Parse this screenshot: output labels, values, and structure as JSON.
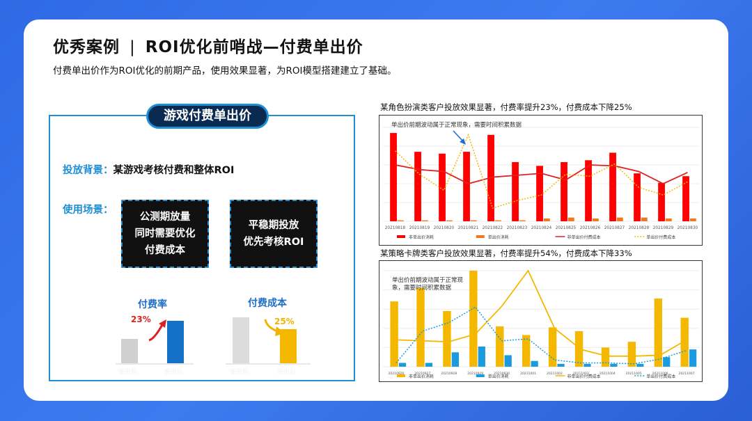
{
  "header": {
    "title_left": "优秀案例",
    "title_sep": "|",
    "title_right": "ROI优化前哨战—付费单出价",
    "subtitle": "付费单出价作为ROI优化的前期产品，使用效果显著，为ROI模型搭建建立了基础。"
  },
  "left_panel": {
    "tag": "游戏付费单出价",
    "background_key": "投放背景：",
    "background_value": "某游戏考核付费和整体ROI",
    "scene_key": "使用场景：",
    "scene_a": [
      "公测期放量",
      "同时需要优化",
      "付费成本"
    ],
    "scene_b": [
      "平稳期投放",
      "优先考核ROI"
    ],
    "mini_charts": [
      {
        "title": "付费率",
        "pct": "23%",
        "pct_color": "#e02020",
        "before": 1.0,
        "after": 1.23,
        "before_color": "#d0d0d0",
        "after_color": "#1570c8",
        "labels": [
          "使用前",
          "使用后"
        ]
      },
      {
        "title": "付费成本",
        "pct": "25%",
        "pct_color": "#f0b400",
        "before": 1.0,
        "after": 0.75,
        "before_color": "#dcdcdc",
        "after_color": "#f5b800",
        "labels": [
          "使用前",
          "使用后"
        ]
      }
    ]
  },
  "chart_captions": {
    "top": "某角色扮演类客户投放效果显著，付费率提升23%，付费成本下降25%",
    "bottom": "某策略卡牌类客户投放效果显著，付费率提升54%，付费成本下降33%"
  },
  "chart_data": [
    {
      "type": "bar",
      "annotation": "单出价前期波动属于正常现象，需要时间积累数据",
      "categories": [
        "20210818",
        "20210819",
        "20210820",
        "20210821",
        "20210822",
        "20210823",
        "20210824",
        "20210825",
        "20210826",
        "20210827",
        "20210828",
        "20210829",
        "20210830"
      ],
      "ylim": [
        0,
        100
      ],
      "series": [
        {
          "name": "非单出价消耗",
          "kind": "bar",
          "color": "#ff0000",
          "values": [
            94,
            74,
            72,
            74,
            92,
            63,
            59,
            63,
            65,
            73,
            51,
            41,
            48
          ]
        },
        {
          "name": "单出价消耗",
          "kind": "bar",
          "color": "#f07820",
          "values": [
            1,
            1,
            1,
            1,
            1,
            1,
            3,
            4,
            3,
            4,
            4,
            3,
            3
          ]
        },
        {
          "name": "非单出价付费成本",
          "kind": "line",
          "color": "#e02020",
          "values": [
            60,
            55,
            53,
            40,
            47,
            49,
            51,
            44,
            60,
            59,
            53,
            40,
            52
          ]
        },
        {
          "name": "单出价付费成本",
          "kind": "dotted",
          "color": "#f5b800",
          "values": [
            75,
            50,
            33,
            92,
            14,
            22,
            28,
            50,
            48,
            61,
            36,
            28,
            42
          ]
        }
      ]
    },
    {
      "type": "bar",
      "annotation": "单出价前期波动属于正常现象，需要时间积累数据",
      "categories": [
        "20210926",
        "20210927",
        "20210928",
        "20210929",
        "20210930",
        "20211001",
        "20211002",
        "20211003",
        "20211004",
        "20211005",
        "20211006",
        "20211007"
      ],
      "ylim": [
        0,
        100
      ],
      "series": [
        {
          "name": "非单出价消耗",
          "kind": "bar",
          "color": "#f5b800",
          "values": [
            68,
            82,
            58,
            100,
            42,
            33,
            41,
            37,
            20,
            26,
            71,
            51
          ]
        },
        {
          "name": "单出价消耗",
          "kind": "bar",
          "color": "#1a9be0",
          "values": [
            4,
            4,
            15,
            21,
            12,
            6,
            3,
            3,
            3,
            3,
            10,
            18
          ]
        },
        {
          "name": "非单出价付费成本",
          "kind": "line",
          "color": "#f5b800",
          "values": [
            28,
            27,
            26,
            34,
            63,
            100,
            40,
            18,
            11,
            11,
            12,
            28
          ]
        },
        {
          "name": "单出价付费成本",
          "kind": "dotted",
          "color": "#1a9be0",
          "values": [
            4,
            37,
            46,
            62,
            27,
            29,
            7,
            4,
            4,
            3,
            8,
            17
          ]
        }
      ]
    }
  ]
}
